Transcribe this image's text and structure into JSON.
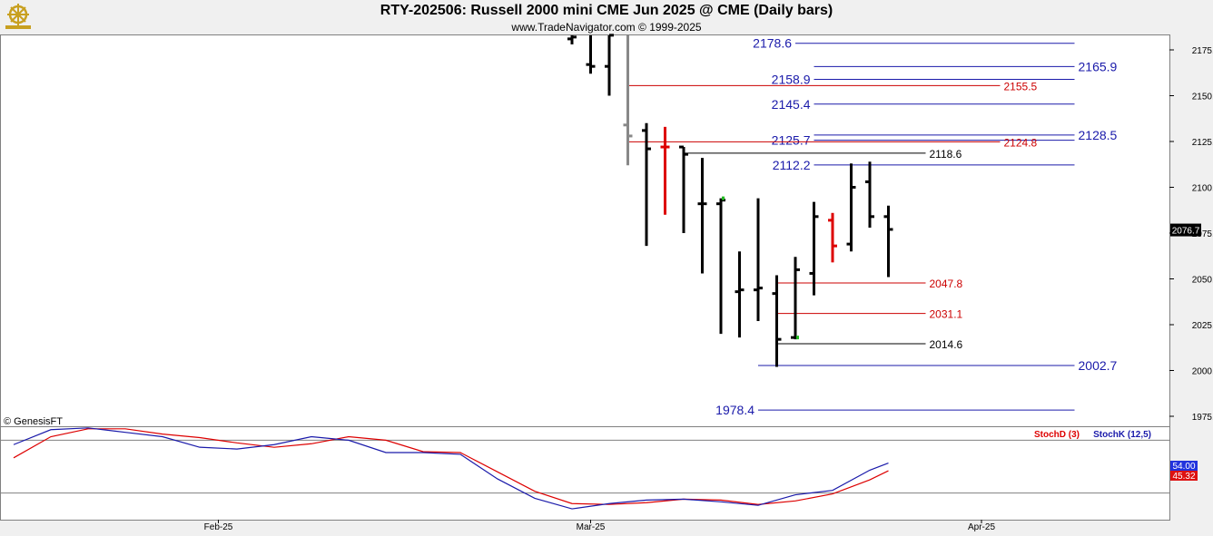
{
  "title": "RTY-202506:  Russell 2000 mini CME Jun 2025 @ CME  (Daily bars)",
  "subtitle": "www.TradeNavigator.com © 1999-2025",
  "copyright": "© GenesisFT",
  "colors": {
    "bar": "#000000",
    "up_marker": "#22bb22",
    "red_bar": "#dd0000",
    "blue_level": "#1a1aaa",
    "red_level": "#cc0000",
    "black_level": "#000000",
    "stoch_d": "#dd0000",
    "stoch_k": "#1a1aaa",
    "price_badge": "#000000"
  },
  "chart_data": [
    {
      "type": "ohlc",
      "ylim": [
        1965,
        2185
      ],
      "y_ticks": [
        "2175.0",
        "2150.0",
        "2125.0",
        "2100.0",
        "2075.0",
        "2050.0",
        "2025.0",
        "2000.0",
        "1975.0"
      ],
      "x_ticks": [
        "Feb-25",
        "Mar-25",
        "Apr-25"
      ],
      "last_price": "2076.7",
      "bars": [
        {
          "day": 30,
          "open": 2181,
          "high": 2184,
          "low": 2178,
          "close": 2182,
          "color": "black"
        },
        {
          "day": 31,
          "open": 2167,
          "high": 2185,
          "low": 2162,
          "close": 2166,
          "color": "black"
        },
        {
          "day": 32,
          "open": 2166,
          "high": 2185,
          "low": 2150,
          "close": 2183,
          "color": "black"
        },
        {
          "day": 33,
          "open": 2134,
          "high": 2184,
          "low": 2112,
          "close": 2128,
          "color": "gray"
        },
        {
          "day": 34,
          "open": 2131,
          "high": 2135,
          "low": 2068,
          "close": 2121,
          "color": "black"
        },
        {
          "day": 35,
          "open": 2122,
          "high": 2133,
          "low": 2085,
          "close": 2122,
          "color": "red"
        },
        {
          "day": 36,
          "open": 2122,
          "high": 2122,
          "low": 2075,
          "close": 2118,
          "color": "black"
        },
        {
          "day": 37,
          "open": 2091,
          "high": 2116,
          "low": 2053,
          "close": 2091,
          "color": "black"
        },
        {
          "day": 38,
          "open": 2091,
          "high": 2094,
          "low": 2020,
          "close": 2093,
          "color": "black"
        },
        {
          "day": 39,
          "open": 2043,
          "high": 2065,
          "low": 2018,
          "close": 2044,
          "color": "black"
        },
        {
          "day": 40,
          "open": 2044,
          "high": 2094,
          "low": 2027,
          "close": 2045,
          "color": "black"
        },
        {
          "day": 41,
          "open": 2042,
          "high": 2052,
          "low": 2002,
          "close": 2017,
          "color": "black"
        },
        {
          "day": 42,
          "open": 2018,
          "high": 2062,
          "low": 2017,
          "close": 2055,
          "color": "black"
        },
        {
          "day": 43,
          "open": 2053,
          "high": 2092,
          "low": 2041,
          "close": 2084,
          "color": "black"
        },
        {
          "day": 44,
          "open": 2082,
          "high": 2086,
          "low": 2059,
          "close": 2068,
          "color": "red"
        },
        {
          "day": 45,
          "open": 2069,
          "high": 2113,
          "low": 2065,
          "close": 2100,
          "color": "black"
        },
        {
          "day": 46,
          "open": 2103,
          "high": 2114,
          "low": 2078,
          "close": 2084,
          "color": "black"
        },
        {
          "day": 47,
          "open": 2084,
          "high": 2090,
          "low": 2051,
          "close": 2077,
          "color": "black"
        }
      ],
      "bar_markers": [
        {
          "day": 38,
          "price": 2094,
          "color": "green"
        },
        {
          "day": 42,
          "price": 2018,
          "color": "green"
        }
      ],
      "levels": [
        {
          "value": "2178.6",
          "color": "blue",
          "from_day": 42,
          "to_day": 57,
          "label_side": "left"
        },
        {
          "value": "2165.9",
          "color": "blue",
          "from_day": 43,
          "to_day": 57,
          "label_side": "right"
        },
        {
          "value": "2158.9",
          "color": "blue",
          "from_day": 43,
          "to_day": 57,
          "label_side": "left"
        },
        {
          "value": "2155.5",
          "color": "red",
          "from_day": 33,
          "to_day": 53,
          "label_side": "right"
        },
        {
          "value": "2145.4",
          "color": "blue",
          "from_day": 43,
          "to_day": 57,
          "label_side": "left"
        },
        {
          "value": "2128.5",
          "color": "blue",
          "from_day": 43,
          "to_day": 57,
          "label_side": "right"
        },
        {
          "value": "2125.7",
          "color": "blue",
          "from_day": 43,
          "to_day": 57,
          "label_side": "left"
        },
        {
          "value": "2124.8",
          "color": "red",
          "from_day": 33,
          "to_day": 53,
          "label_side": "right"
        },
        {
          "value": "2118.6",
          "color": "black",
          "from_day": 36,
          "to_day": 49,
          "label_side": "right"
        },
        {
          "value": "2112.2",
          "color": "blue",
          "from_day": 43,
          "to_day": 57,
          "label_side": "left"
        },
        {
          "value": "2047.8",
          "color": "red",
          "from_day": 41,
          "to_day": 49,
          "label_side": "right"
        },
        {
          "value": "2031.1",
          "color": "red",
          "from_day": 41,
          "to_day": 49,
          "label_side": "right"
        },
        {
          "value": "2014.6",
          "color": "black",
          "from_day": 41,
          "to_day": 49,
          "label_side": "right"
        },
        {
          "value": "2002.7",
          "color": "blue",
          "from_day": 40,
          "to_day": 57,
          "label_side": "right"
        },
        {
          "value": "1978.4",
          "color": "blue",
          "from_day": 40,
          "to_day": 57,
          "label_side": "left"
        }
      ]
    },
    {
      "type": "line",
      "title": "Stochastic",
      "ylim": [
        0,
        100
      ],
      "reference_lines": [
        80,
        20
      ],
      "current_values": {
        "stoch_k": "54.00",
        "stoch_d": "45.32"
      },
      "series": [
        {
          "name": "StochD (3)",
          "color": "red",
          "x": [
            0,
            2,
            4,
            6,
            8,
            10,
            12,
            14,
            16,
            18,
            20,
            22,
            24,
            26,
            28,
            30,
            32,
            34,
            36,
            38,
            40,
            42,
            44,
            46,
            47
          ],
          "values": [
            60,
            84,
            93,
            93,
            87,
            83,
            77,
            72,
            76,
            84,
            80,
            67,
            66,
            44,
            22,
            8,
            7,
            9,
            13,
            12,
            7,
            11,
            19,
            35,
            45.32
          ]
        },
        {
          "name": "StochK (12,5)",
          "color": "blue",
          "x": [
            0,
            2,
            4,
            6,
            8,
            10,
            12,
            14,
            16,
            18,
            20,
            22,
            24,
            26,
            28,
            30,
            32,
            34,
            36,
            38,
            40,
            42,
            44,
            46,
            47
          ],
          "values": [
            75,
            92,
            94,
            89,
            84,
            72,
            70,
            75,
            84,
            80,
            66,
            66,
            64,
            36,
            14,
            2,
            8,
            12,
            13,
            10,
            6,
            18,
            23,
            46,
            54.0
          ]
        }
      ]
    }
  ]
}
